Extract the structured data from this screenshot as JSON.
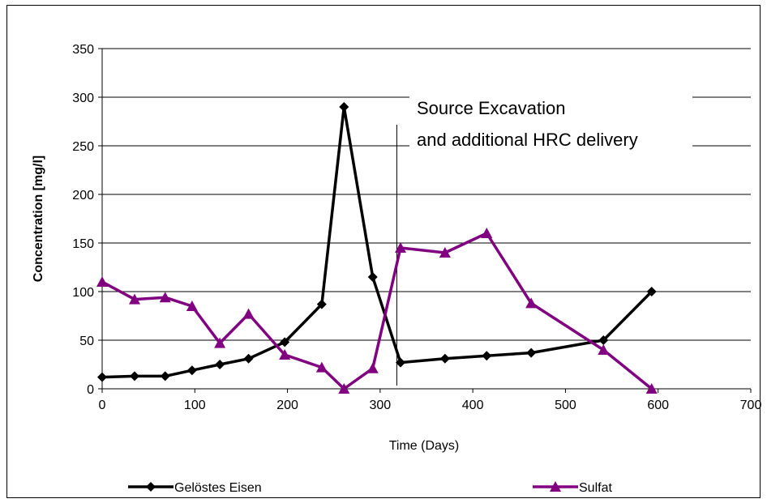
{
  "chart_data": {
    "type": "line",
    "xlabel": "Time (Days)",
    "ylabel": "Concentration [mg/l]",
    "xlim": [
      0,
      700
    ],
    "ylim": [
      0,
      350
    ],
    "xticks": [
      0,
      100,
      200,
      300,
      400,
      500,
      600,
      700
    ],
    "yticks": [
      0,
      50,
      100,
      150,
      200,
      250,
      300,
      350
    ],
    "grid": "horizontal",
    "legend_position": "bottom",
    "series": [
      {
        "name": "Gelöstes Eisen",
        "color": "#000000",
        "marker": "diamond",
        "x": [
          0,
          35,
          68,
          97,
          127,
          158,
          197,
          237,
          261,
          292,
          322,
          370,
          415,
          463,
          541,
          593
        ],
        "y": [
          12,
          13,
          13,
          19,
          25,
          31,
          48,
          87,
          290,
          115,
          27,
          31,
          34,
          37,
          50,
          100
        ]
      },
      {
        "name": "Sulfat",
        "color": "#800080",
        "marker": "triangle",
        "x": [
          0,
          35,
          68,
          97,
          127,
          158,
          197,
          237,
          261,
          292,
          322,
          370,
          415,
          463,
          541,
          593
        ],
        "y": [
          110,
          92,
          94,
          85,
          47,
          77,
          35,
          22,
          0,
          21,
          145,
          140,
          160,
          88,
          40,
          0
        ]
      }
    ],
    "annotation": {
      "x": 318,
      "line1": "Source Excavation",
      "line2": "and additional HRC delivery"
    }
  }
}
